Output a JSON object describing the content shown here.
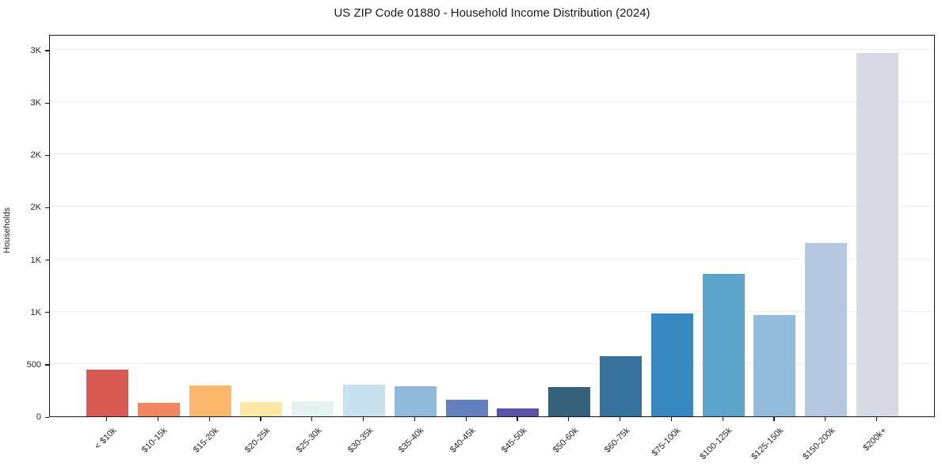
{
  "window": {
    "kind": "matplotlib-style figure",
    "background_color": "#ffffff",
    "frame_color": "#1a1a1a",
    "gridline_color": "#efefef",
    "text_color": "#262626"
  },
  "chart_data": {
    "type": "bar",
    "title": "US ZIP Code 01880 - Household Income Distribution (2024)",
    "xlabel": "",
    "ylabel": "Households",
    "legend": "none",
    "grid": "horizontal",
    "x_tick_rotation_deg": 45,
    "ylim": [
      0,
      3650
    ],
    "yticks": {
      "values": [
        0,
        500,
        1000,
        1500,
        2000,
        2500,
        3000,
        3500
      ],
      "labels": [
        "0",
        "500",
        "1K",
        "1K",
        "2K",
        "2K",
        "3K",
        "3K"
      ]
    },
    "categories": [
      "< $10k",
      "$10-15k",
      "$15-20k",
      "$20-25k",
      "$25-30k",
      "$30-35k",
      "$35-40k",
      "$40-45k",
      "$45-50k",
      "$50-60k",
      "$60-75k",
      "$75-100k",
      "$100-125k",
      "$125-150k",
      "$150-200k",
      "$200k+"
    ],
    "values": [
      445,
      130,
      295,
      135,
      140,
      300,
      290,
      160,
      78,
      282,
      575,
      982,
      1362,
      968,
      1655,
      3465
    ],
    "bar_colors": [
      "#d85a52",
      "#ef8561",
      "#fbb76c",
      "#fce8a4",
      "#e6f1f2",
      "#c7e0ed",
      "#90badc",
      "#6280bd",
      "#5a54a8",
      "#35617a",
      "#36729c",
      "#3889bf",
      "#5aa5c9",
      "#92bcdb",
      "#b5c8e0",
      "#d7d9e5"
    ]
  }
}
